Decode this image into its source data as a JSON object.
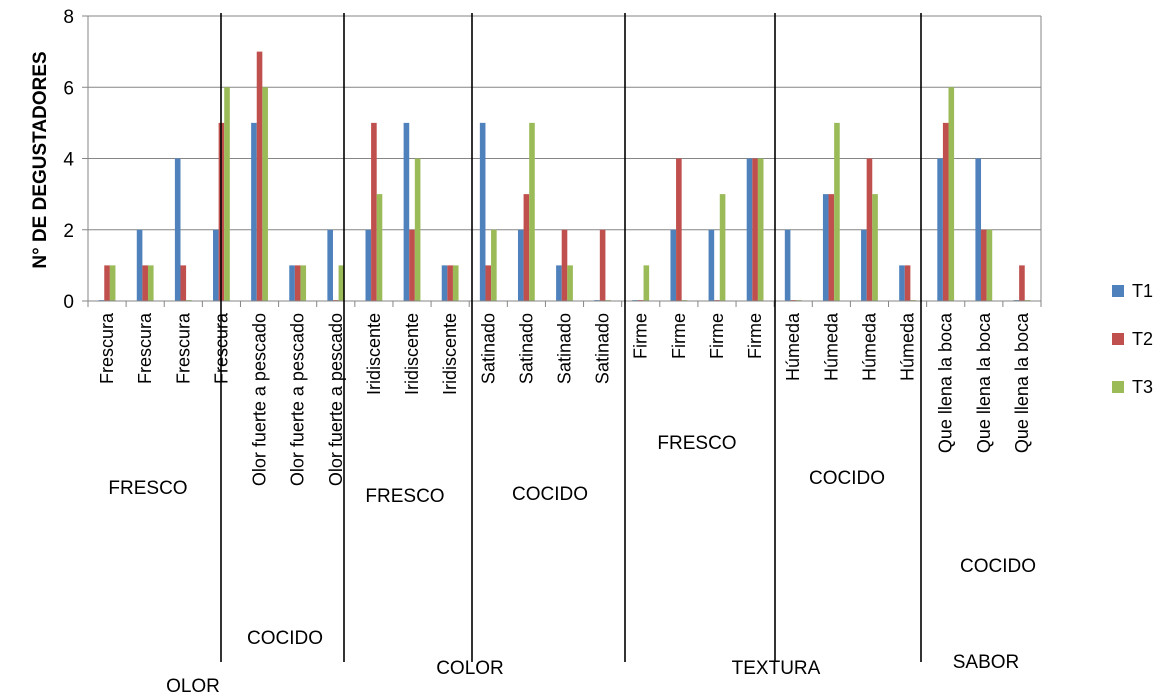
{
  "chart_data": {
    "type": "bar",
    "ylabel": "N° DE DEGUSTADORES",
    "ylim": [
      0,
      8
    ],
    "yticks": [
      0,
      2,
      4,
      6,
      8
    ],
    "grid": true,
    "legend_position": "right",
    "categories": [
      "Frescura",
      "Frescura",
      "Frescura",
      "Frescura",
      "Olor fuerte a pescado",
      "Olor fuerte a pescado",
      "Olor fuerte a pescado",
      "Iridiscente",
      "Iridiscente",
      "Iridiscente",
      "Satinado",
      "Satinado",
      "Satinado",
      "Satinado",
      "Firme",
      "Firme",
      "Firme",
      "Firme",
      "Húmeda",
      "Húmeda",
      "Húmeda",
      "Húmeda",
      "Que llena la boca",
      "Que llena la boca",
      "Que llena la boca"
    ],
    "series": [
      {
        "name": "T1",
        "color": "#4F81BD",
        "values": [
          0,
          2,
          4,
          2,
          5,
          1,
          2,
          2,
          5,
          1,
          5,
          2,
          1,
          0,
          0,
          2,
          2,
          4,
          2,
          3,
          2,
          1,
          4,
          4,
          0
        ]
      },
      {
        "name": "T2",
        "color": "#C0504D",
        "values": [
          1,
          1,
          1,
          5,
          7,
          1,
          0,
          5,
          2,
          1,
          1,
          3,
          2,
          2,
          0,
          4,
          0,
          4,
          0,
          3,
          4,
          1,
          5,
          2,
          1
        ]
      },
      {
        "name": "T3",
        "color": "#9BBB59",
        "values": [
          1,
          1,
          0,
          6,
          6,
          1,
          1,
          3,
          4,
          1,
          2,
          5,
          1,
          0,
          1,
          0,
          3,
          4,
          0,
          5,
          3,
          0,
          6,
          2,
          0
        ]
      }
    ],
    "sub_groups": [
      {
        "label": "FRESCO",
        "range": [
          0,
          3
        ]
      },
      {
        "label": "COCIDO",
        "range": [
          4,
          6
        ]
      },
      {
        "label": "FRESCO",
        "range": [
          7,
          9
        ]
      },
      {
        "label": "COCIDO",
        "range": [
          10,
          13
        ]
      },
      {
        "label": "FRESCO",
        "range": [
          14,
          17
        ]
      },
      {
        "label": "COCIDO",
        "range": [
          18,
          21
        ]
      },
      {
        "label": "COCIDO",
        "range": [
          22,
          24
        ]
      }
    ],
    "main_groups": [
      {
        "label": "OLOR",
        "range": [
          0,
          6
        ]
      },
      {
        "label": "COLOR",
        "range": [
          7,
          13
        ]
      },
      {
        "label": "TEXTURA",
        "range": [
          14,
          21
        ]
      },
      {
        "label": "SABOR",
        "range": [
          22,
          24
        ]
      }
    ]
  }
}
